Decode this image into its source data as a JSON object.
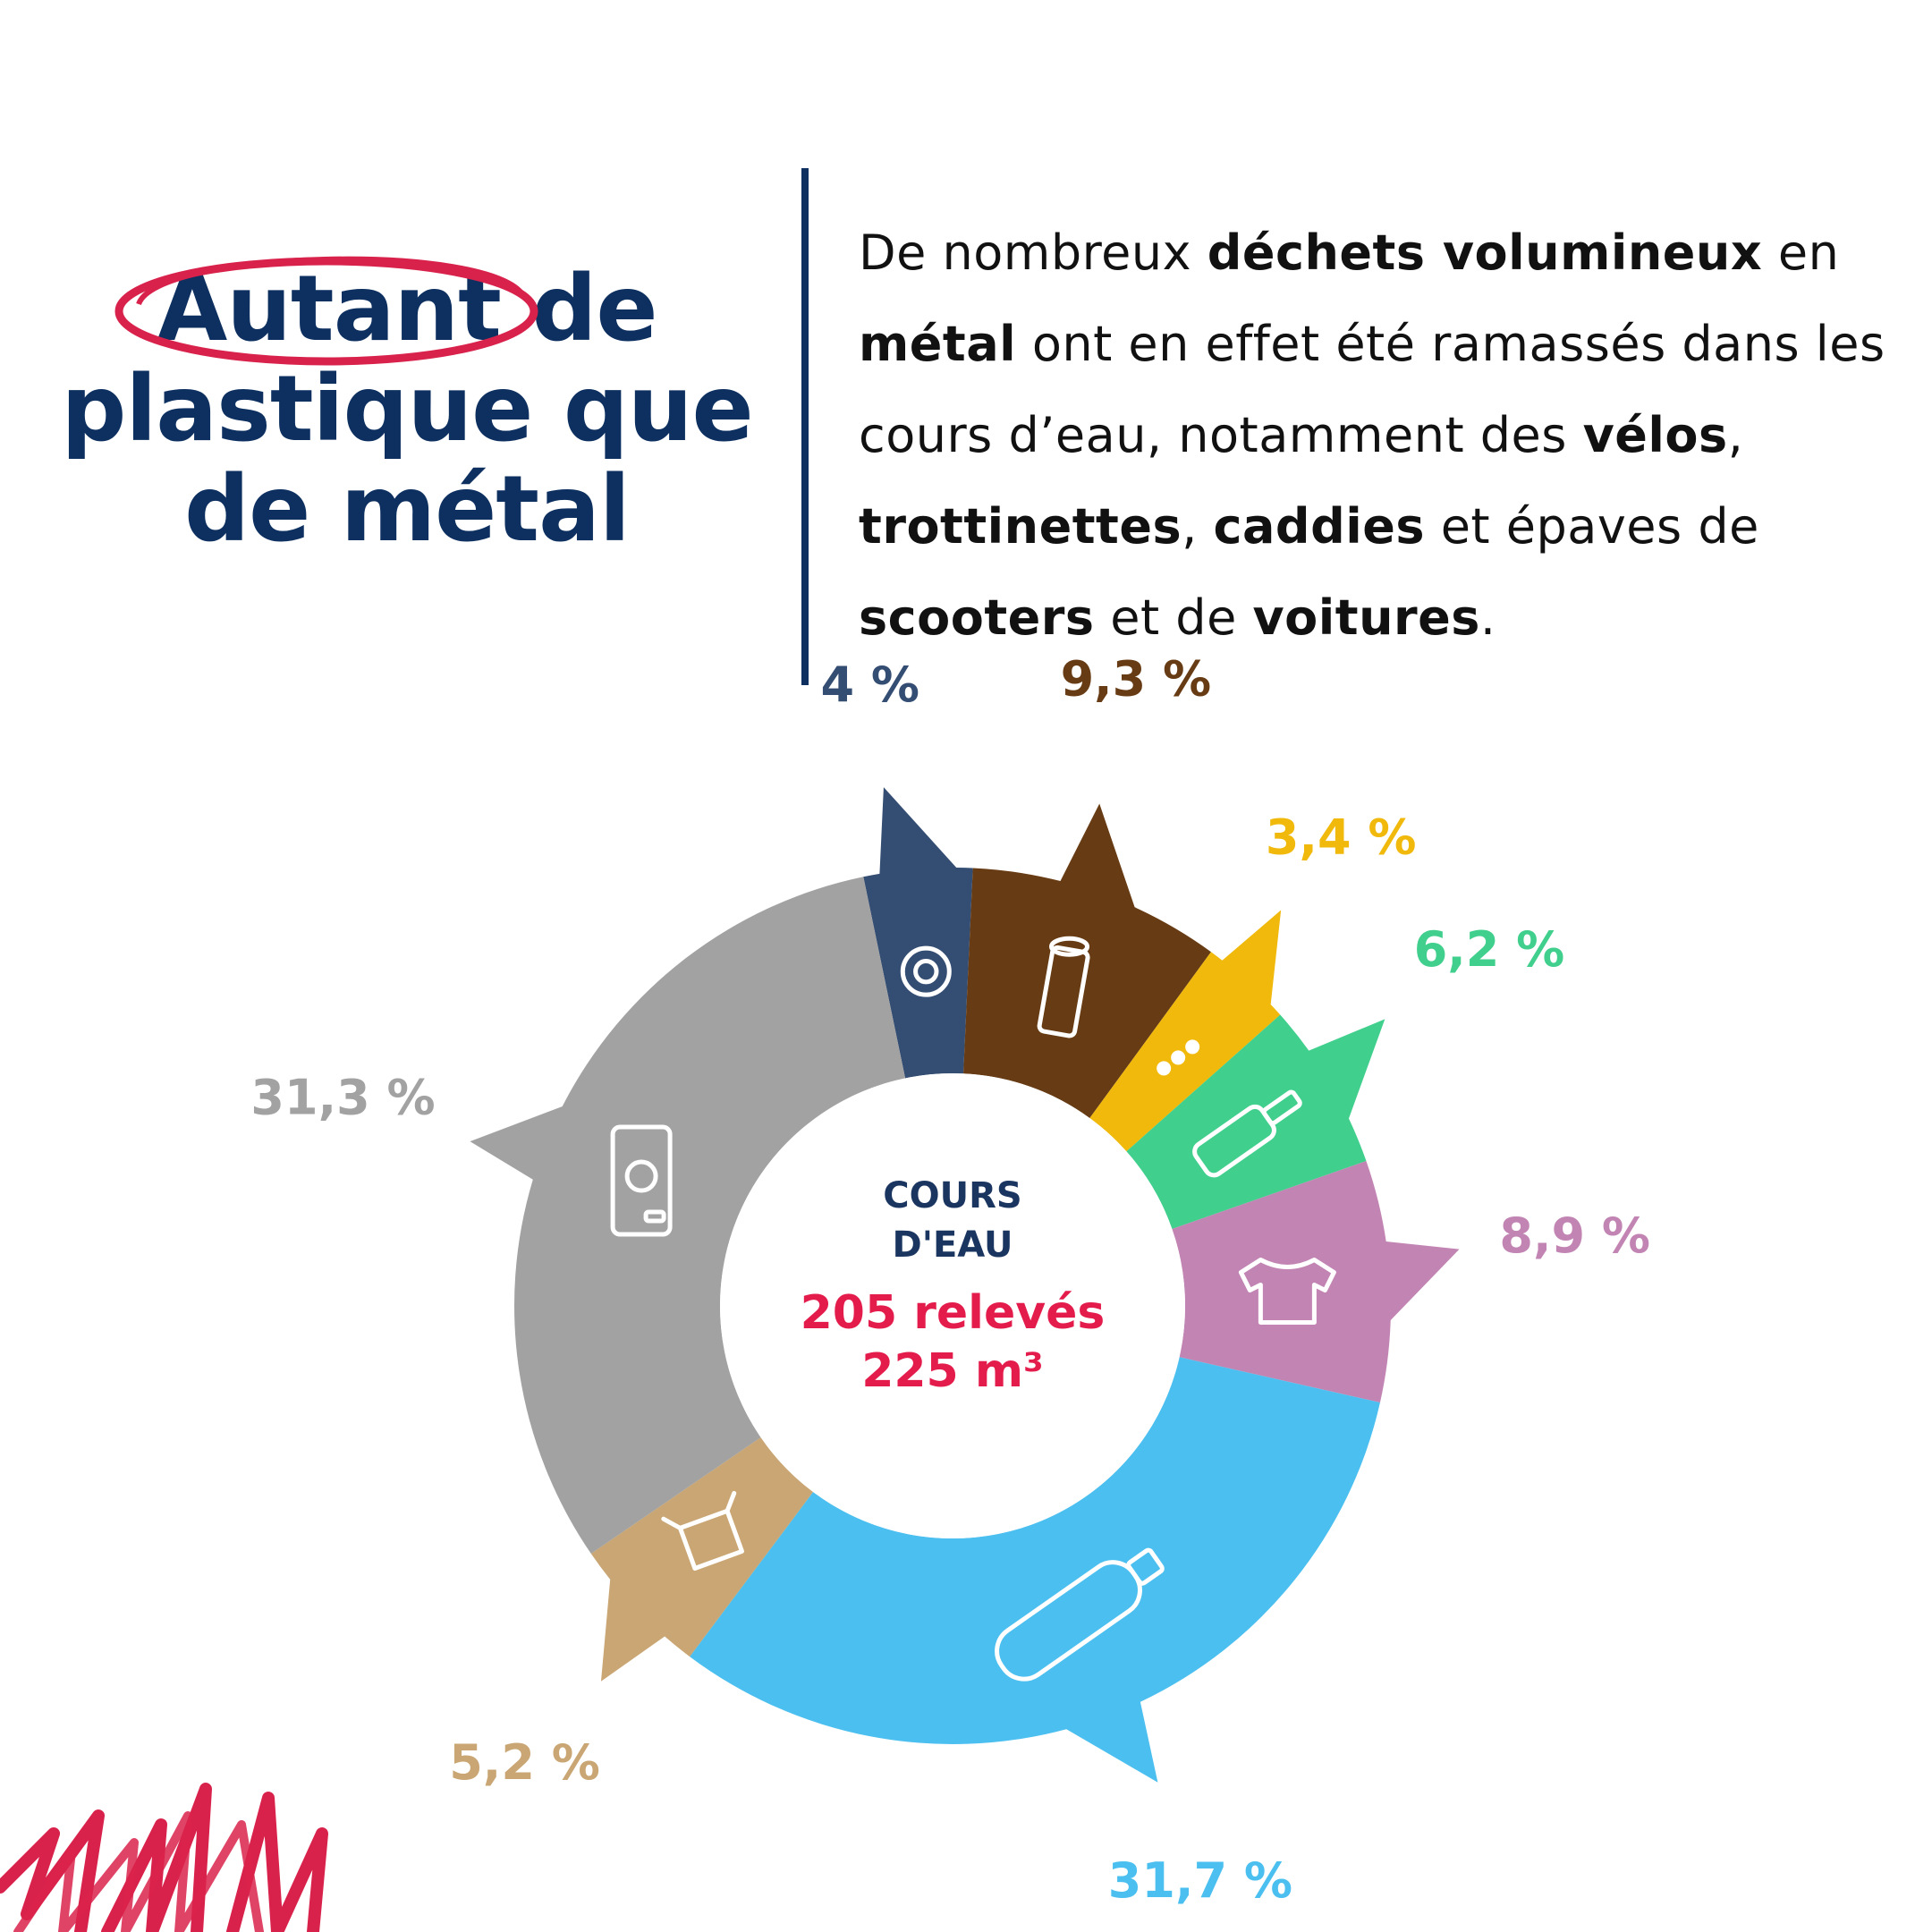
{
  "heading": {
    "highlight": "Autant",
    "rest_line1": "de",
    "line2": "plastique que",
    "line3": "de métal"
  },
  "paragraph": [
    {
      "t": "De nombreux ",
      "b": false
    },
    {
      "t": "déchets volumineux",
      "b": true
    },
    {
      "t": " en ",
      "b": false
    },
    {
      "t": "métal",
      "b": true
    },
    {
      "t": " ont en effet été ramassés dans les cours d’eau, notamment des ",
      "b": false
    },
    {
      "t": "vélos",
      "b": true
    },
    {
      "t": ", ",
      "b": false
    },
    {
      "t": "trottinettes",
      "b": true
    },
    {
      "t": ", ",
      "b": false
    },
    {
      "t": "caddies",
      "b": true
    },
    {
      "t": " et épaves de ",
      "b": false
    },
    {
      "t": "scooters",
      "b": true
    },
    {
      "t": " et de ",
      "b": false
    },
    {
      "t": "voitures",
      "b": true
    },
    {
      "t": ".",
      "b": false
    }
  ],
  "colors": {
    "heading": "#0d3060",
    "highlight_ring": "#d9224b",
    "center_title": "#1a3560",
    "center_value": "#e41c4c"
  },
  "chart_data": {
    "type": "pie",
    "variant": "donut",
    "center": {
      "line1": "COURS",
      "line2": "D'EAU",
      "line3": "205 relevés",
      "line4": "225 m³"
    },
    "slices": [
      {
        "label": "4 %",
        "value": 4,
        "color": "#344d72",
        "icon": "tire-icon"
      },
      {
        "label": "9,3 %",
        "value": 9.3,
        "color": "#673b13",
        "icon": "wood-log-icon"
      },
      {
        "label": "3,4 %",
        "value": 3.4,
        "color": "#f0b90b",
        "icon": "ellipsis-icon"
      },
      {
        "label": "6,2 %",
        "value": 6.2,
        "color": "#40cf8c",
        "icon": "glass-bottle-icon"
      },
      {
        "label": "8,9 %",
        "value": 8.9,
        "color": "#c184b3",
        "icon": "tshirt-icon"
      },
      {
        "label": "31,7 %",
        "value": 31.7,
        "color": "#4bbfef",
        "icon": "plastic-bottle-icon"
      },
      {
        "label": "5,2 %",
        "value": 5.2,
        "color": "#c9a673",
        "icon": "cardboard-box-icon"
      },
      {
        "label": "31,3 %",
        "value": 31.3,
        "color": "#a2a2a2",
        "icon": "can-icon"
      }
    ]
  }
}
